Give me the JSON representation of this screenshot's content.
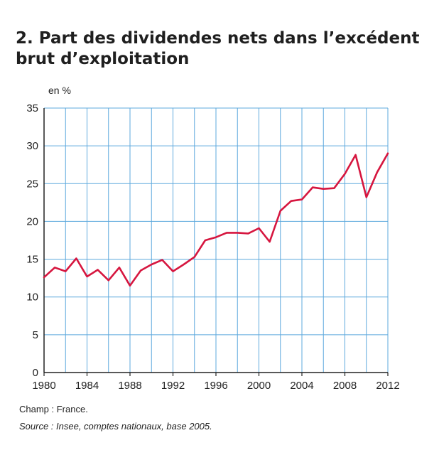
{
  "title": "2. Part des dividendes nets dans l’excédent brut d’exploitation",
  "unit_label": "en %",
  "footnotes": {
    "champ": "Champ : France.",
    "source": "Source : Insee, comptes nationaux, base 2005."
  },
  "colors": {
    "line": "#d6163f",
    "grid": "#5ea9dd",
    "axis": "#222222"
  },
  "chart_data": {
    "type": "line",
    "title": "2. Part des dividendes nets dans l’excédent brut d’exploitation",
    "ylabel": "en %",
    "xlim": [
      1980,
      2012
    ],
    "ylim": [
      0,
      35
    ],
    "grid": true,
    "x_ticks": [
      1980,
      1984,
      1988,
      1992,
      1996,
      2000,
      2004,
      2008,
      2012
    ],
    "y_ticks": [
      0,
      5,
      10,
      15,
      20,
      25,
      30,
      35
    ],
    "x": [
      1980,
      1981,
      1982,
      1983,
      1984,
      1985,
      1986,
      1987,
      1988,
      1989,
      1990,
      1991,
      1992,
      1993,
      1994,
      1995,
      1996,
      1997,
      1998,
      1999,
      2000,
      2001,
      2002,
      2003,
      2004,
      2005,
      2006,
      2007,
      2008,
      2009,
      2010,
      2011,
      2012
    ],
    "series": [
      {
        "values": [
          12.6,
          13.9,
          13.4,
          15.1,
          12.7,
          13.6,
          12.2,
          13.9,
          11.5,
          13.5,
          14.3,
          14.9,
          13.4,
          14.3,
          15.3,
          17.5,
          17.9,
          18.5,
          18.5,
          18.4,
          19.1,
          17.3,
          21.4,
          22.7,
          22.9,
          24.5,
          24.3,
          24.4,
          26.3,
          28.8,
          23.2,
          26.5,
          29.0
        ]
      }
    ]
  }
}
